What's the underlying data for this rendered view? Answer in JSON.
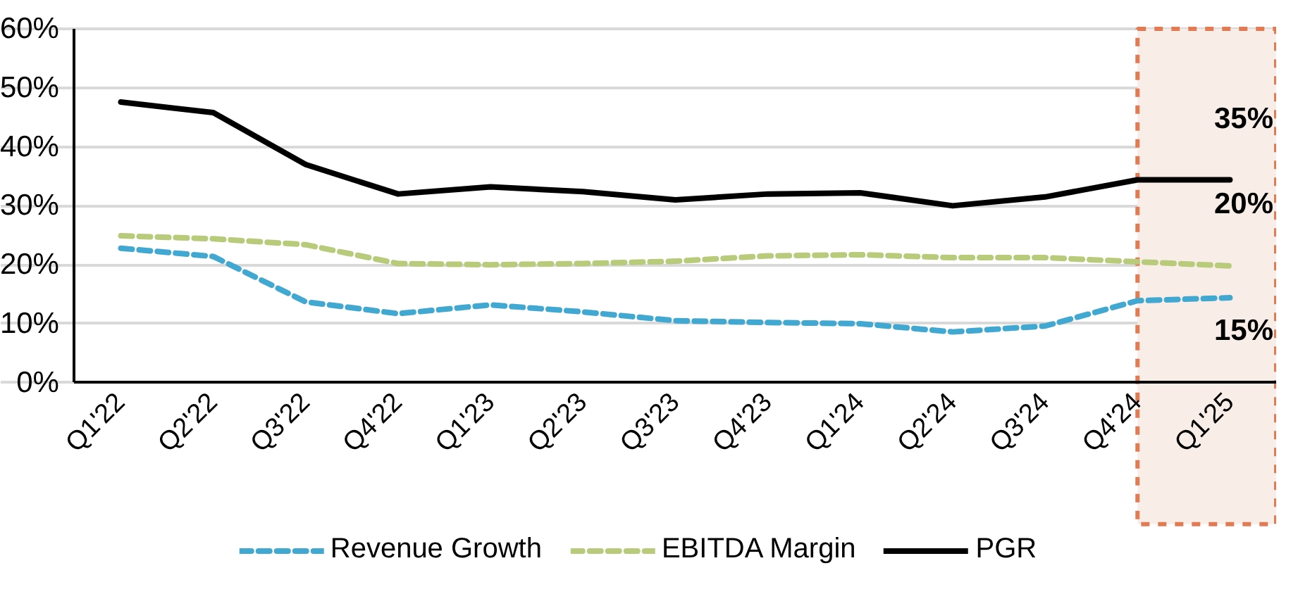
{
  "chart_data": {
    "type": "line",
    "categories": [
      "Q1'22",
      "Q2'22",
      "Q3'22",
      "Q4'22",
      "Q1'23",
      "Q2'23",
      "Q3'23",
      "Q4'23",
      "Q1'24",
      "Q2'24",
      "Q3'24",
      "Q4'24",
      "Q1'25"
    ],
    "series": [
      {
        "name": "Revenue Growth",
        "color": "#41a8d1",
        "line_style": "dashed",
        "values": [
          22.8,
          21.4,
          13.7,
          11.7,
          13.2,
          12,
          10.5,
          10.2,
          10,
          8.6,
          9.6,
          13.9,
          14.4
        ]
      },
      {
        "name": "EBITDA Margin",
        "color": "#b7cb7a",
        "line_style": "dashed",
        "values": [
          24.9,
          24.4,
          23.4,
          20.2,
          20,
          20.2,
          20.6,
          21.5,
          21.7,
          21.2,
          21.2,
          20.5,
          19.8
        ]
      },
      {
        "name": "PGR",
        "color": "#000000",
        "line_style": "solid",
        "values": [
          47.6,
          45.8,
          37,
          32,
          33.2,
          32.4,
          31,
          32,
          32.2,
          30,
          31.5,
          34.4,
          34.4
        ]
      }
    ],
    "ylim": [
      0,
      60
    ],
    "yticks": [
      {
        "value": 0,
        "label": "0%"
      },
      {
        "value": 10,
        "label": "10%"
      },
      {
        "value": 20,
        "label": "20%"
      },
      {
        "value": 30,
        "label": "30%"
      },
      {
        "value": 40,
        "label": "40%"
      },
      {
        "value": 50,
        "label": "50%"
      },
      {
        "value": 60,
        "label": "60%"
      }
    ],
    "grid": "y",
    "legend": "bottom",
    "marker": "none",
    "bands": [
      {
        "axis": "x",
        "from": "Q4'24",
        "to": "Q1'25",
        "color": "#f9ede8"
      }
    ],
    "annotations": [
      "35%",
      "20%",
      "15%"
    ]
  }
}
